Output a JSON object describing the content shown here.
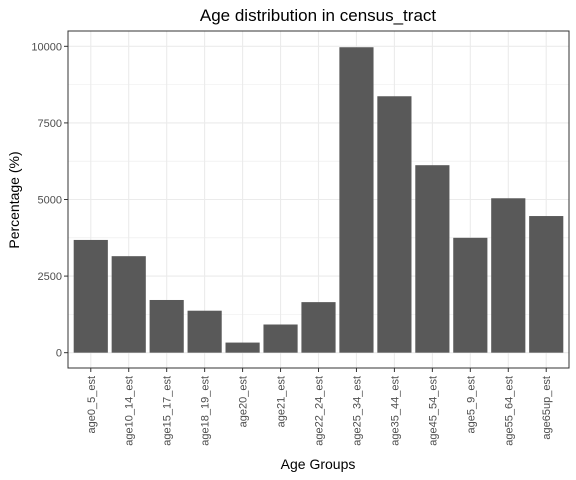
{
  "chart_data": {
    "type": "bar",
    "title": "Age distribution in census_tract",
    "xlabel": "Age Groups",
    "ylabel": "Percentage (%)",
    "categories": [
      "age0_5_est",
      "age10_14_est",
      "age15_17_est",
      "age18_19_est",
      "age20_est",
      "age21_est",
      "age22_24_est",
      "age25_34_est",
      "age35_44_est",
      "age45_54_est",
      "age5_9_est",
      "age55_64_est",
      "age65up_est"
    ],
    "values": [
      3680,
      3150,
      1720,
      1370,
      330,
      920,
      1650,
      9970,
      8370,
      6120,
      3750,
      5040,
      4460
    ],
    "yticks": [
      0,
      2500,
      5000,
      7500,
      10000
    ],
    "ytick_labels": [
      "0",
      "2500",
      "5000",
      "7500",
      "10000"
    ],
    "ylim": [
      -500,
      10500
    ],
    "grid": true,
    "bar_color": "#595959",
    "grid_color": "#ebebeb",
    "panel_border_color": "#333333"
  }
}
